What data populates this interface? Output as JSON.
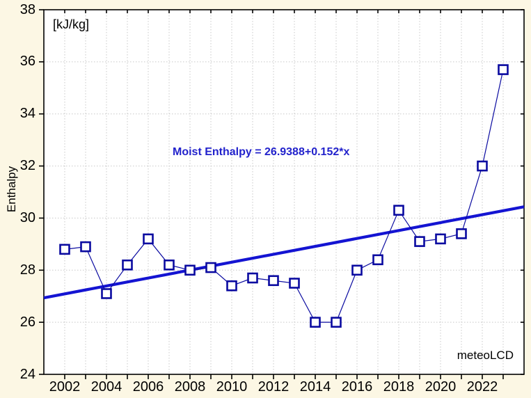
{
  "page": {
    "background": "#FCF7E4"
  },
  "chart_data": {
    "type": "line",
    "series_name": "Moist Enthalpy",
    "unit_label": "[kJ/kg]",
    "ylabel": "Enthalpy",
    "xlabel": "",
    "annotation": "Moist Enthalpy = 26.9388+0.152*x",
    "watermark": "meteoLCD",
    "x": [
      2002,
      2003,
      2004,
      2005,
      2006,
      2007,
      2008,
      2009,
      2010,
      2011,
      2012,
      2013,
      2014,
      2015,
      2016,
      2017,
      2018,
      2019,
      2020,
      2021,
      2022,
      2023
    ],
    "values": [
      28.8,
      28.9,
      27.1,
      28.2,
      29.2,
      28.2,
      28.0,
      28.1,
      27.4,
      27.7,
      27.6,
      27.5,
      26.0,
      26.0,
      28.0,
      28.4,
      30.3,
      29.1,
      29.2,
      29.4,
      32.0,
      35.7
    ],
    "trend": {
      "equation": "y = 26.9388 + 0.152*x",
      "intercept": 26.9388,
      "slope": 0.152,
      "x_origin_year": 2001
    },
    "xlim": [
      2001,
      2024
    ],
    "ylim": [
      24,
      38
    ],
    "x_tick_labels": [
      "2002",
      "2004",
      "2006",
      "2008",
      "2010",
      "2012",
      "2014",
      "2016",
      "2018",
      "2020",
      "2022"
    ],
    "y_tick_labels": [
      "24",
      "26",
      "28",
      "30",
      "32",
      "34",
      "36",
      "38"
    ],
    "x_minor_tick_step_years": 1,
    "y_tick_step": 2,
    "grid": {
      "shown": true,
      "style": "dotted",
      "horizontal_at": [
        26,
        28,
        30,
        32,
        34,
        36
      ],
      "vertical_every_year": true
    },
    "legend": {
      "shown": false
    },
    "marker": {
      "shape": "square",
      "hollow": true
    },
    "colors": {
      "page_bg": "#FCF7E4",
      "plot_bg": "#FFFFFF",
      "axis": "#000000",
      "grid": "#C8C8C8",
      "series": "#0A0AA0",
      "trend": "#1414D2",
      "annotation": "#2222CC",
      "text": "#000000"
    }
  }
}
